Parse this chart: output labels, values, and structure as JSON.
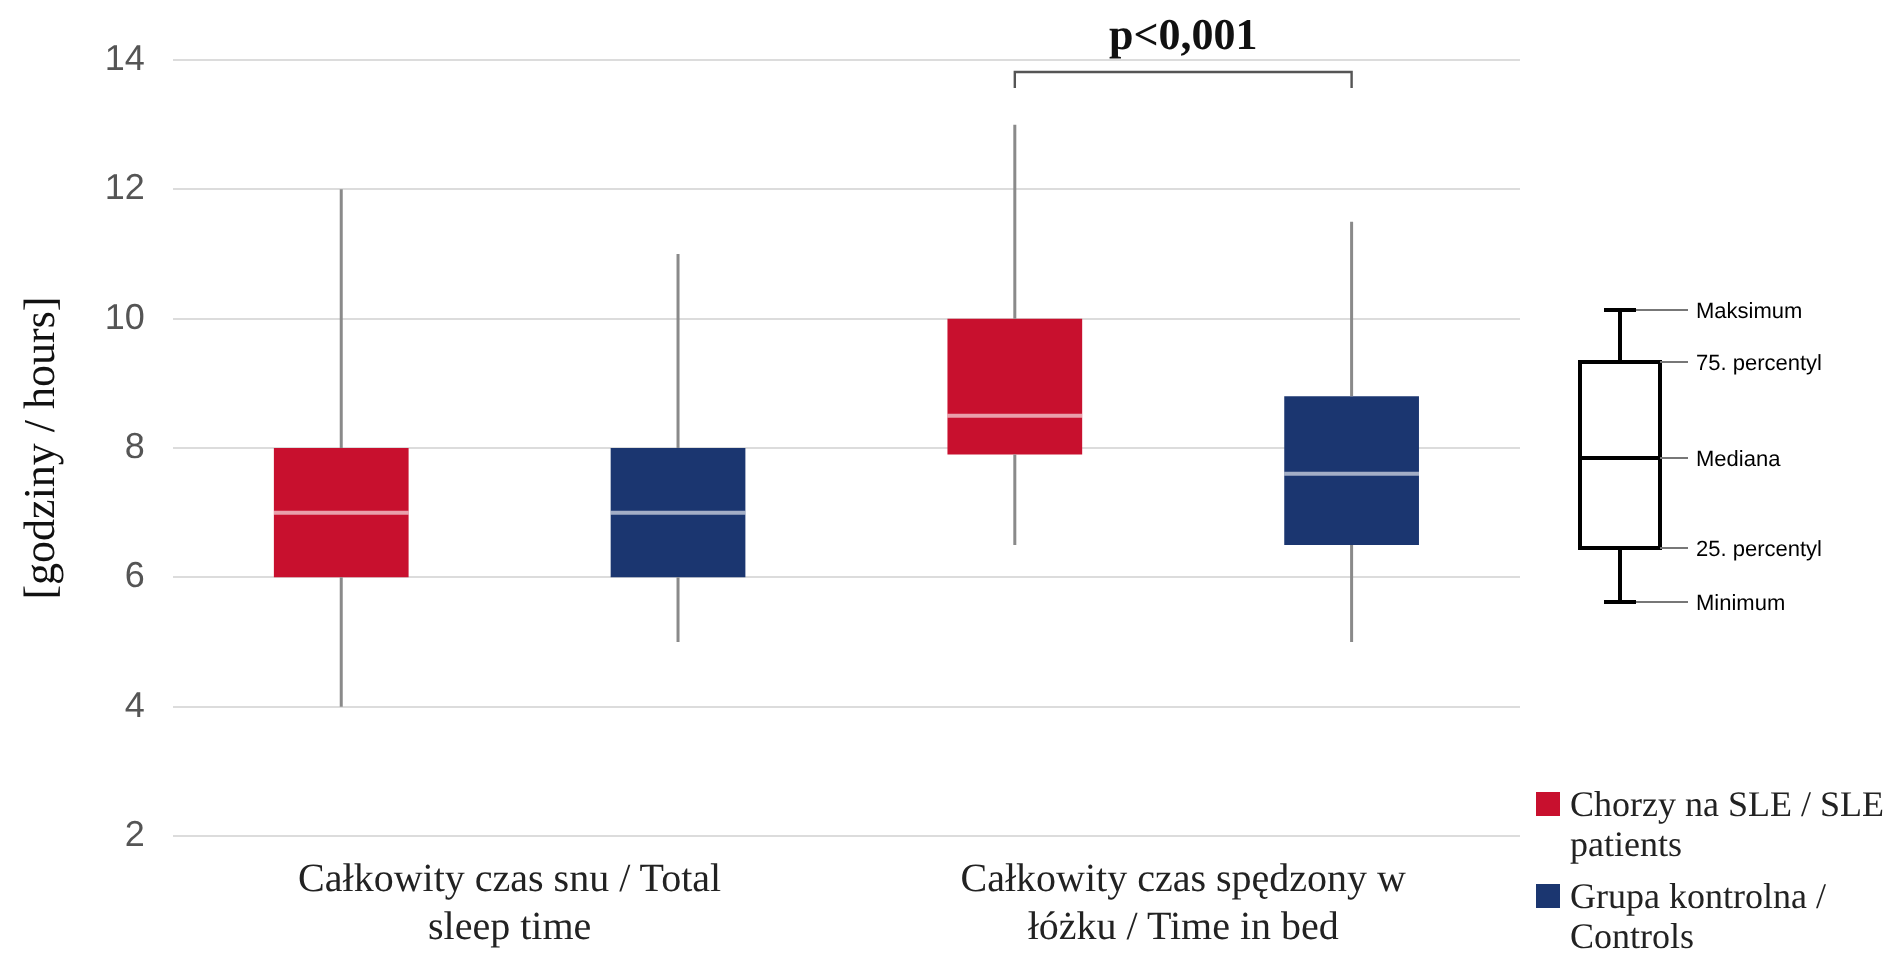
{
  "chart_data": {
    "type": "box",
    "ylabel": "[godziny / hours]",
    "categories": [
      "Całkowity czas snu / Total sleep time",
      "Całkowity czas spędzony w łóżku / Time in bed"
    ],
    "series": [
      {
        "name": "Chorzy na SLE / SLE patients",
        "color": "#c8102e",
        "boxes": [
          {
            "low": 4,
            "q1": 6,
            "median": 7,
            "q3": 8,
            "high": 12
          },
          {
            "low": 6.5,
            "q1": 7.9,
            "median": 8.5,
            "q3": 10,
            "high": 13
          }
        ]
      },
      {
        "name": "Grupa kontrolna / Controls",
        "color": "#1b3670",
        "boxes": [
          {
            "low": 5,
            "q1": 6,
            "median": 7,
            "q3": 8,
            "high": 11
          },
          {
            "low": 5,
            "q1": 6.5,
            "median": 7.6,
            "q3": 8.8,
            "high": 11.5
          }
        ]
      }
    ],
    "ylim": [
      2,
      14
    ],
    "yticks": [
      2,
      4,
      6,
      8,
      10,
      12,
      14
    ],
    "grid": "y",
    "legend": "bottom right",
    "annotations": [
      "p<0,001",
      "Maksimum",
      "75. percentyl",
      "Mediana",
      "25. percentyl",
      "Minimum"
    ]
  }
}
